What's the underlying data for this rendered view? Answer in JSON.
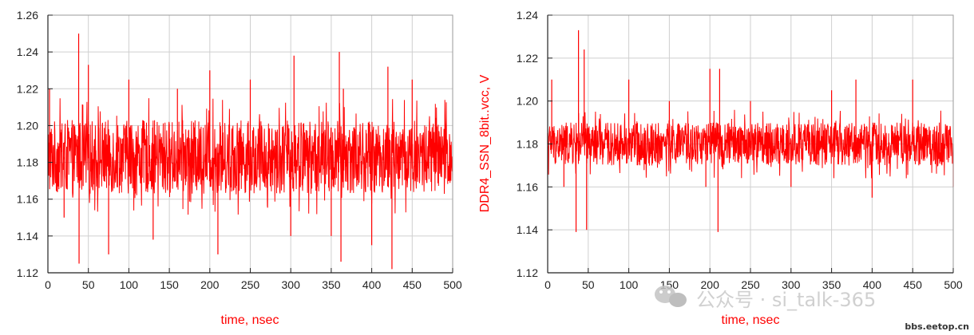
{
  "chart_data": [
    {
      "type": "line",
      "title": "",
      "xlabel": "time, nsec",
      "ylabel": "",
      "xlim": [
        0,
        500
      ],
      "ylim": [
        1.12,
        1.26
      ],
      "xticks": [
        "0",
        "50",
        "100",
        "150",
        "200",
        "250",
        "300",
        "350",
        "400",
        "450",
        "500"
      ],
      "yticks": [
        "1.12",
        "1.14",
        "1.16",
        "1.18",
        "1.20",
        "1.22",
        "1.24",
        "1.26"
      ],
      "grid": true,
      "series_color": "#ff0000",
      "series": [
        {
          "baseline": 1.183,
          "band_low": 1.163,
          "band_high": 1.203,
          "x": [
            0,
            2,
            20,
            38,
            38.5,
            50,
            75,
            100,
            130,
            160,
            200,
            210,
            250,
            300,
            304,
            350,
            360,
            362,
            365,
            400,
            420,
            425,
            450,
            500
          ],
          "y": [
            1.183,
            1.22,
            1.15,
            1.25,
            1.125,
            1.233,
            1.13,
            1.225,
            1.138,
            1.22,
            1.23,
            1.13,
            1.225,
            1.14,
            1.238,
            1.14,
            1.24,
            1.126,
            1.22,
            1.135,
            1.232,
            1.122,
            1.225,
            1.183
          ]
        }
      ]
    },
    {
      "type": "line",
      "title": "",
      "xlabel": "time, nsec",
      "ylabel": "DDR4_SSN_8bit..vcc, V",
      "xlim": [
        0,
        500
      ],
      "ylim": [
        1.12,
        1.24
      ],
      "xticks": [
        "0",
        "50",
        "100",
        "150",
        "200",
        "250",
        "300",
        "350",
        "400",
        "450",
        "500"
      ],
      "yticks": [
        "1.12",
        "1.14",
        "1.16",
        "1.18",
        "1.20",
        "1.22",
        "1.24"
      ],
      "grid": true,
      "series_color": "#ff0000",
      "series": [
        {
          "baseline": 1.18,
          "band_low": 1.17,
          "band_high": 1.19,
          "x": [
            0,
            5,
            20,
            35,
            38,
            45,
            48,
            100,
            150,
            195,
            200,
            210,
            212,
            250,
            300,
            350,
            380,
            400,
            450,
            500
          ],
          "y": [
            1.185,
            1.21,
            1.16,
            1.139,
            1.233,
            1.224,
            1.14,
            1.21,
            1.2,
            1.16,
            1.215,
            1.139,
            1.215,
            1.2,
            1.16,
            1.205,
            1.21,
            1.155,
            1.21,
            1.16
          ]
        }
      ]
    }
  ],
  "watermark": {
    "text": "公众号 · si_talk-365",
    "footer": "bbs.eetop.cn",
    "icon": "wechat-bubble-icon"
  }
}
